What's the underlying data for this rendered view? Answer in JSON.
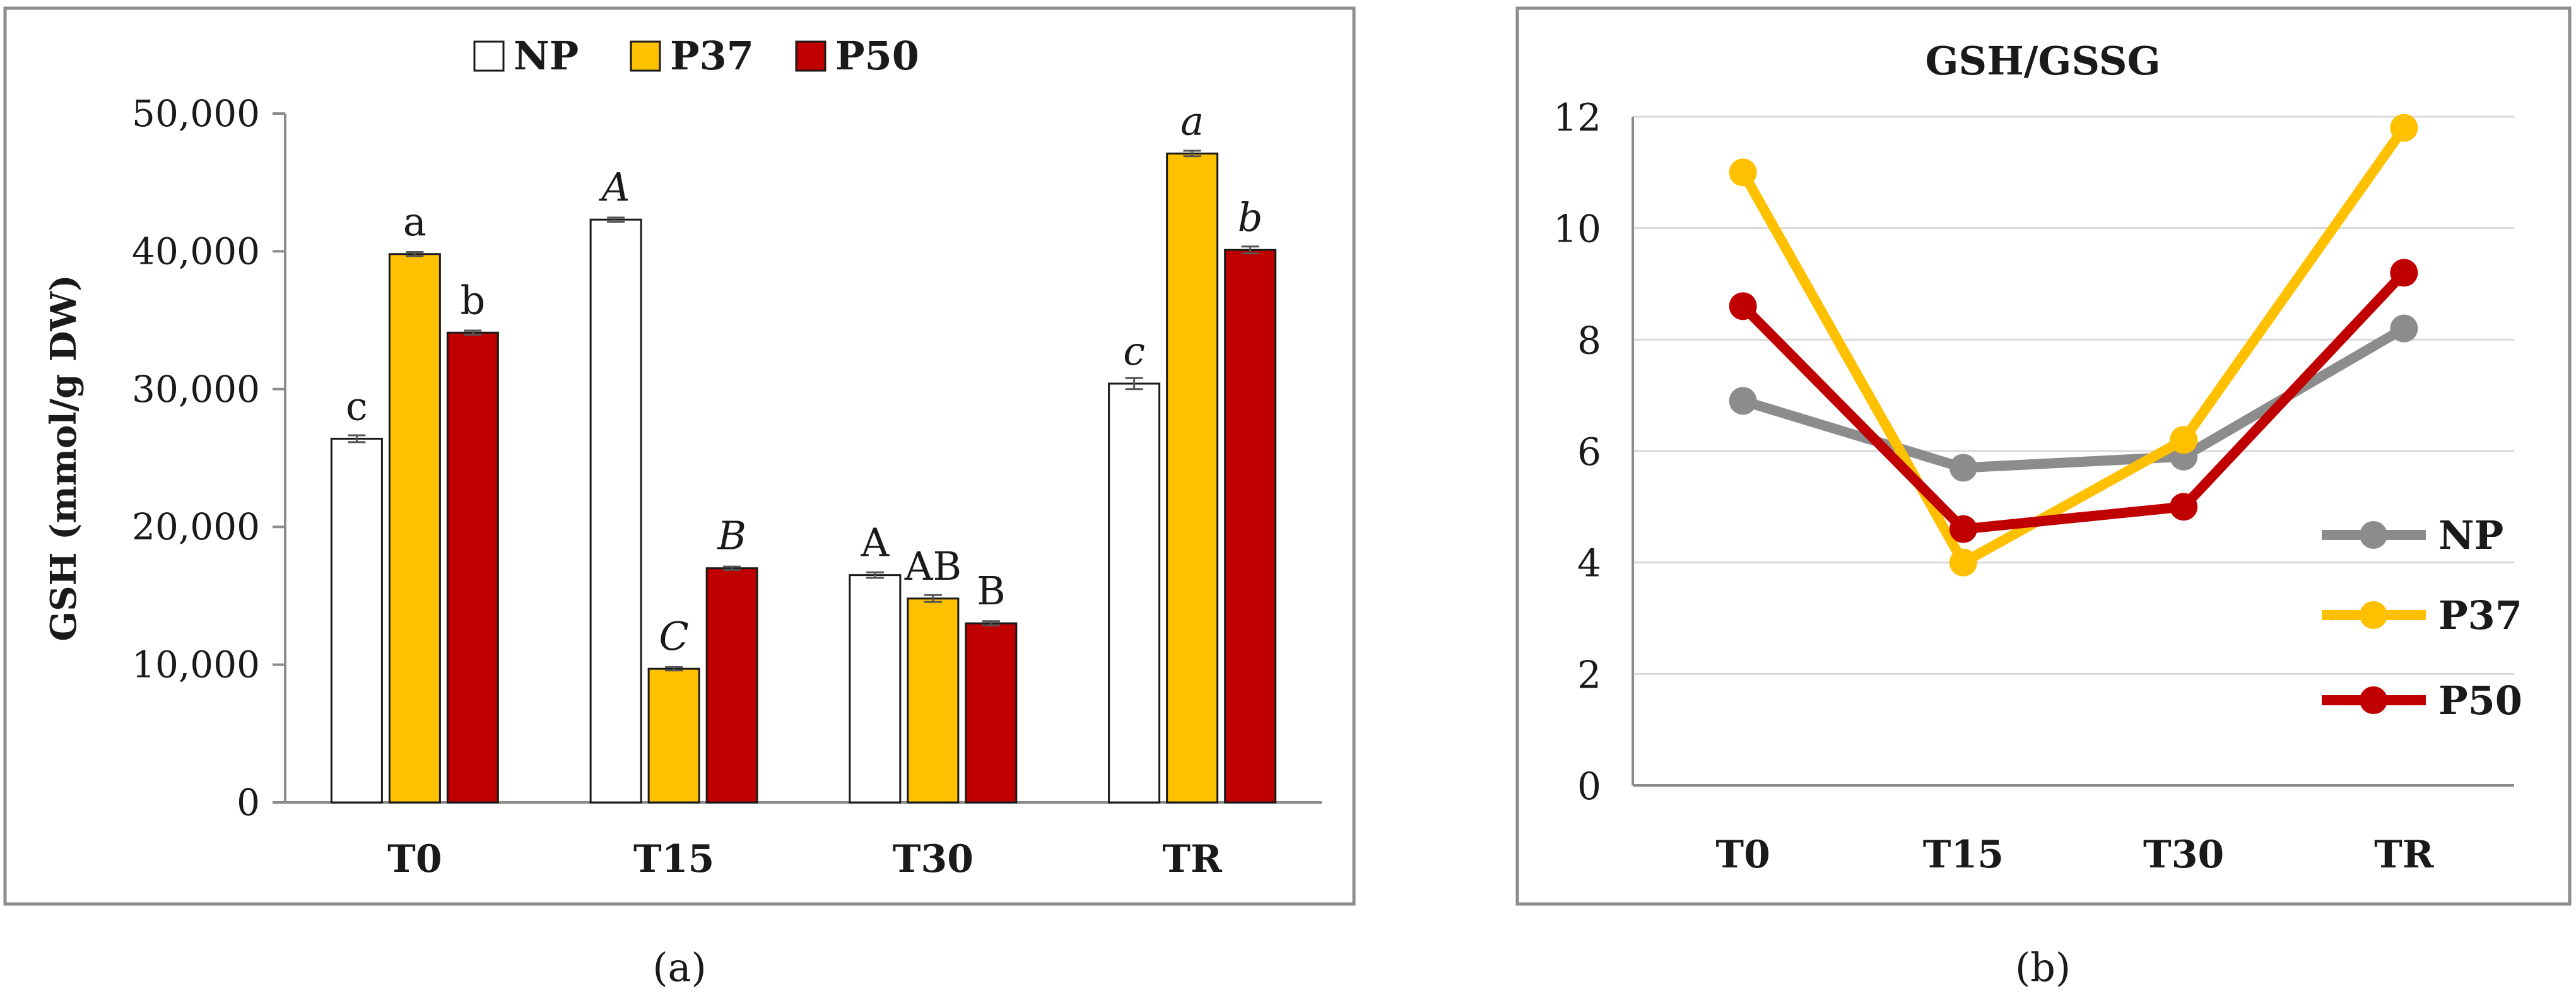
{
  "colors": {
    "NP": "#ffffff",
    "P37": "#ffc000",
    "P50": "#c00000",
    "NP_line": "#8c8c8c",
    "P37_line": "#ffc000",
    "P50_line": "#c00000",
    "frame": "#8c8c8c",
    "grid": "#d9d9d9",
    "text": "#1a1a1a"
  },
  "chart_data": [
    {
      "type": "bar",
      "panel_label": "(a)",
      "title": "",
      "xlabel": "",
      "ylabel": "GSH (mmol/g DW)",
      "ylim": [
        0,
        50000
      ],
      "yticks": [
        0,
        10000,
        20000,
        30000,
        40000,
        50000
      ],
      "ytick_labels": [
        "0",
        "10,000",
        "20,000",
        "30,000",
        "40,000",
        "50,000"
      ],
      "grid": false,
      "legend_position": "top-center",
      "categories": [
        "T0",
        "T15",
        "T30",
        "TR"
      ],
      "series": [
        {
          "name": "NP",
          "values": [
            26400,
            42300,
            16500,
            30400
          ],
          "errors": [
            250,
            150,
            200,
            400
          ]
        },
        {
          "name": "P37",
          "values": [
            39800,
            9700,
            14800,
            47100
          ],
          "errors": [
            150,
            120,
            250,
            200
          ]
        },
        {
          "name": "P50",
          "values": [
            34100,
            17000,
            13000,
            40100
          ],
          "errors": [
            150,
            120,
            150,
            250
          ]
        }
      ],
      "annotations": [
        [
          "c",
          "a",
          "b"
        ],
        [
          "A",
          "C",
          "B"
        ],
        [
          "A",
          "AB",
          "B"
        ],
        [
          "c",
          "a",
          "b"
        ]
      ],
      "annotation_italic": [
        false,
        true,
        false,
        true
      ]
    },
    {
      "type": "line",
      "panel_label": "(b)",
      "title": "GSH/GSSG",
      "xlabel": "",
      "ylabel": "",
      "ylim": [
        0,
        12
      ],
      "yticks": [
        0,
        2,
        4,
        6,
        8,
        10,
        12
      ],
      "ytick_labels": [
        "0",
        "2",
        "4",
        "6",
        "8",
        "10",
        "12"
      ],
      "grid": true,
      "legend_position": "bottom-right",
      "categories": [
        "T0",
        "T15",
        "T30",
        "TR"
      ],
      "series": [
        {
          "name": "NP",
          "values": [
            6.9,
            5.7,
            5.9,
            8.2
          ]
        },
        {
          "name": "P37",
          "values": [
            11.0,
            4.0,
            6.2,
            11.8
          ]
        },
        {
          "name": "P50",
          "values": [
            8.6,
            4.6,
            5.0,
            9.2
          ]
        }
      ]
    }
  ]
}
